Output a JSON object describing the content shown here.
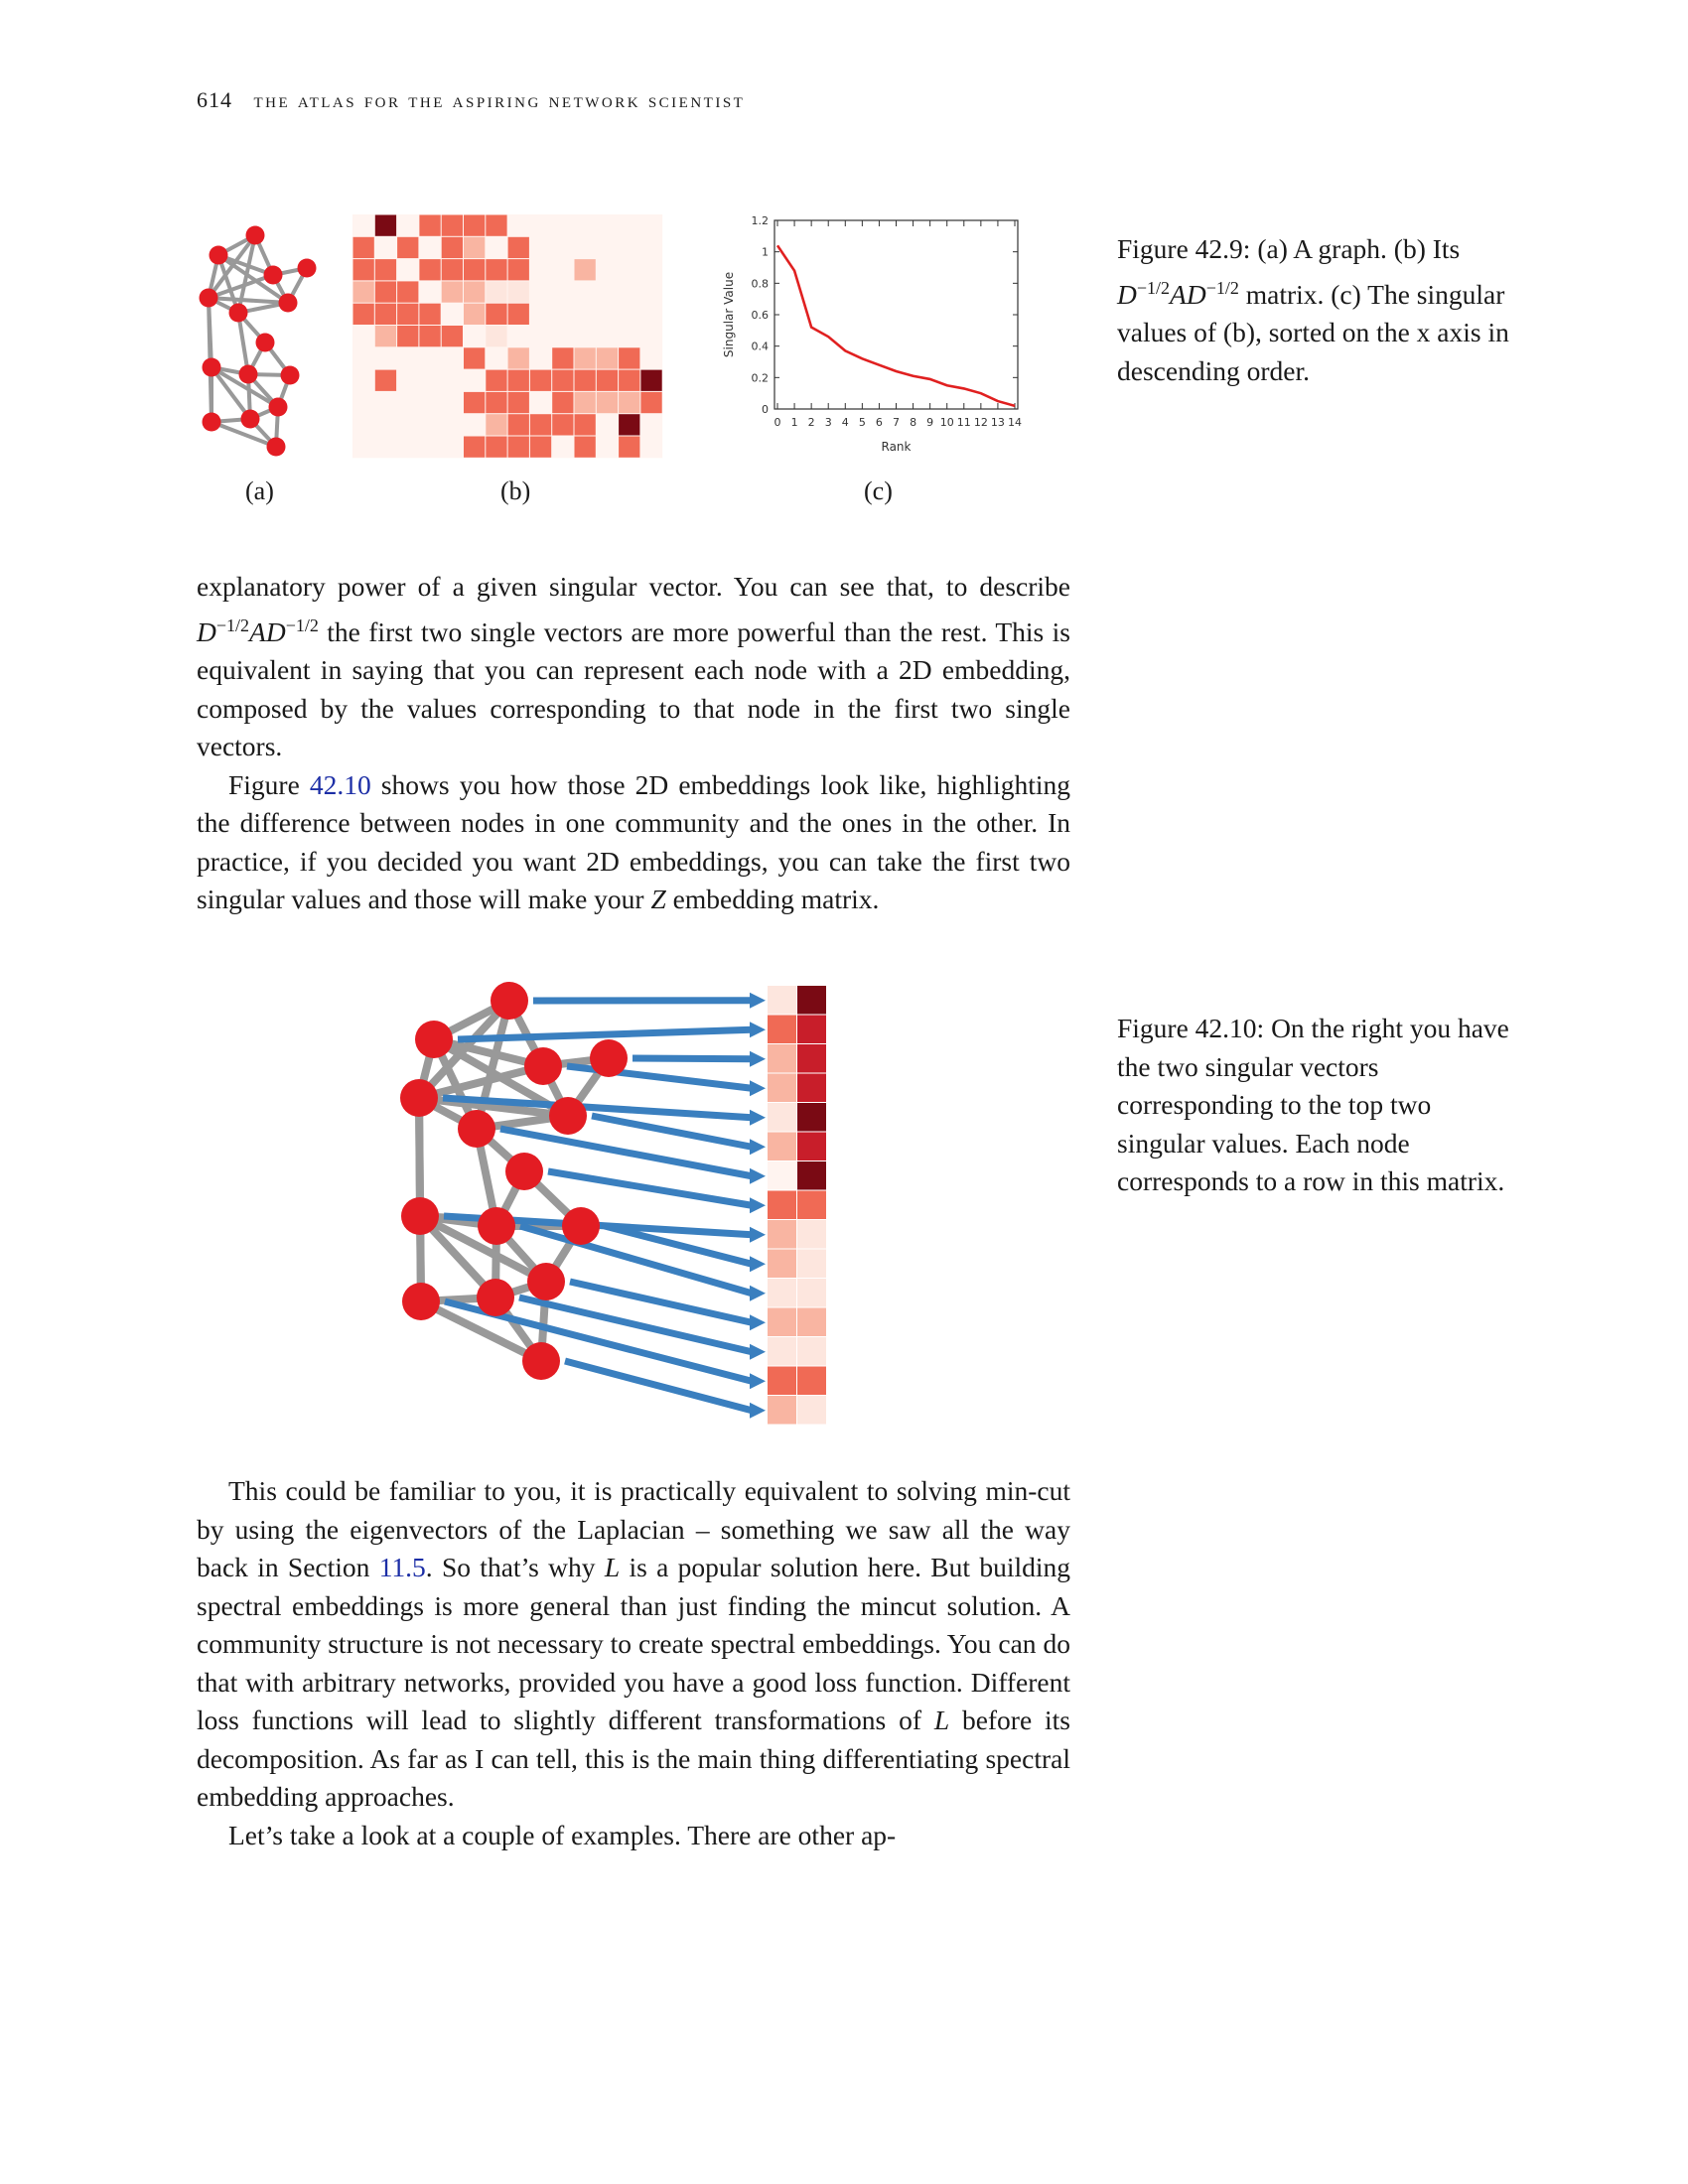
{
  "header": {
    "page_number": "614",
    "title": "the atlas for the aspiring network scientist"
  },
  "figure_42_9": {
    "sublabels": [
      "(a)",
      "(b)",
      "(c)"
    ],
    "caption": {
      "label": "Figure 42.9:",
      "part1": " (a) A graph. (b) Its ",
      "math_D": "D",
      "exp": "−1/2",
      "math_AD": "AD",
      "part2": " matrix. (c) The singular values of (b), sorted on the x axis in descending order."
    },
    "chart_data": {
      "type": "line",
      "xlabel": "Rank",
      "ylabel": "Singular Value",
      "x": [
        0,
        1,
        2,
        3,
        4,
        5,
        6,
        7,
        8,
        9,
        10,
        11,
        12,
        13,
        14
      ],
      "x_ticks": [
        "0",
        "1",
        "2",
        "3",
        "4",
        "5",
        "6",
        "7",
        "8",
        "9",
        "10",
        "11",
        "12",
        "13",
        "14"
      ],
      "y_ticks": [
        "0",
        "0.2",
        "0.4",
        "0.6",
        "0.8",
        "1",
        "1.2"
      ],
      "ylim": [
        0,
        1.2
      ],
      "series": [
        {
          "values": [
            1.04,
            0.88,
            0.52,
            0.46,
            0.37,
            0.32,
            0.28,
            0.24,
            0.21,
            0.19,
            0.15,
            0.13,
            0.1,
            0.05,
            0.02
          ],
          "color": "#e02020"
        }
      ]
    },
    "matrix_colors": {
      "dark": "#7a0a14",
      "red": "#c81e2a",
      "mid": "#f06a55",
      "light": "#f9b5a2",
      "pale": "#fde6de",
      "bg": "#fff4f0"
    },
    "node_color": "#e31c23",
    "edge_color": "#999999"
  },
  "paragraph1": {
    "part1": "explanatory power of a given singular vector. You can see that, to describe ",
    "math_D": "D",
    "exp": "−1/2",
    "math_AD": "AD",
    "part2": " the first two single vectors are more powerful than the rest. This is equivalent in saying that you can represent each node with a 2D embedding, composed by the values corresponding to that node in the first two single vectors."
  },
  "paragraph2": {
    "part1": "Figure ",
    "ref": "42.10",
    "part2": " shows you how those 2D embeddings look like, highlighting the difference between nodes in one community and the ones in the other. In practice, if you decided you want 2D embeddings, you can take the first two singular values and those will make your ",
    "math_Z": "Z",
    "part3": " embedding matrix."
  },
  "figure_42_10": {
    "caption": "Figure 42.10: On the right you have the two singular vectors corresponding to the top two singular values. Each node corresponds to a row in this matrix.",
    "arrow_color": "#3a7fbf",
    "node_color": "#e31c23",
    "edge_color": "#999999"
  },
  "paragraph3": {
    "part1": "This could be familiar to you, it is practically equivalent to solving min-cut by using the eigenvectors of the Laplacian – something we saw all the way back in Section ",
    "ref": "11.5",
    "part2": ". So that’s why ",
    "math_L": "L",
    "part3": " is a popular solution here. But building spectral embeddings is more general than just finding the mincut solution. A community structure is not necessary to create spectral embeddings. You can do that with arbitrary networks, provided you have a good loss function. Different loss functions will lead to slightly different transformations of ",
    "math_L2": "L",
    "part4": " before its decomposition. As far as I can tell, this is the main thing differentiating spectral embedding approaches."
  },
  "paragraph4": {
    "text": "Let’s take a look at a couple of examples. There are other ap-"
  }
}
